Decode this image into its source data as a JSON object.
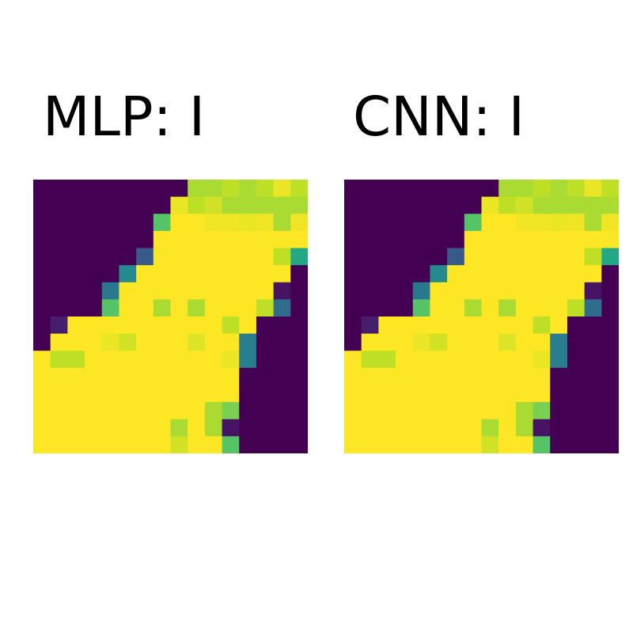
{
  "chart_data": [
    {
      "type": "heatmap",
      "title": "MLP: I",
      "colormap": "viridis",
      "value_range": [
        0,
        1
      ],
      "rows": 16,
      "cols": 16,
      "values": [
        [
          0,
          0,
          0,
          0,
          0,
          0,
          0,
          0,
          0,
          0.87,
          0.87,
          0.9,
          0.87,
          0.9,
          0.97,
          0.9
        ],
        [
          0,
          0,
          0,
          0,
          0,
          0,
          0,
          0,
          0.97,
          0.9,
          0.93,
          0.87,
          0.87,
          0.87,
          0.87,
          0.87
        ],
        [
          0,
          0,
          0,
          0,
          0,
          0,
          0,
          0.73,
          1,
          1,
          0.98,
          0.98,
          0.97,
          0.98,
          0.87,
          0.98
        ],
        [
          0,
          0,
          0,
          0,
          0,
          0,
          0,
          1,
          1,
          1,
          1,
          1,
          1,
          1,
          1,
          1
        ],
        [
          0,
          0,
          0,
          0,
          0,
          0,
          0.28,
          1,
          1,
          1,
          1,
          1,
          1,
          1,
          0.9,
          0.6
        ],
        [
          0,
          0,
          0,
          0,
          0,
          0.47,
          1,
          1,
          1,
          1,
          1,
          1,
          1,
          1,
          1,
          0
        ],
        [
          0,
          0,
          0,
          0,
          0.4,
          1,
          1,
          1,
          1,
          1,
          1,
          1,
          1,
          1,
          0.05,
          0
        ],
        [
          0,
          0,
          0,
          0,
          0.73,
          1,
          1,
          0.87,
          1,
          0.87,
          1,
          1,
          1,
          0.9,
          0.35,
          0
        ],
        [
          0,
          0.08,
          1,
          1,
          1,
          1,
          1,
          1,
          1,
          1,
          1,
          0.9,
          1,
          0,
          0,
          0
        ],
        [
          0,
          1,
          1,
          1,
          0.97,
          0.93,
          1,
          1,
          1,
          0.95,
          1,
          1,
          0.42,
          0,
          0,
          0
        ],
        [
          1,
          0.9,
          0.9,
          1,
          1,
          1,
          1,
          1,
          1,
          1,
          1,
          0.97,
          0.42,
          0,
          0,
          0
        ],
        [
          1,
          1,
          1,
          1,
          1,
          1,
          1,
          1,
          1,
          1,
          1,
          1,
          0,
          0,
          0,
          0
        ],
        [
          1,
          1,
          1,
          1,
          1,
          1,
          1,
          1,
          1,
          1,
          1,
          1,
          0,
          0,
          0,
          0
        ],
        [
          1,
          1,
          1,
          1,
          1,
          1,
          1,
          1,
          1,
          1,
          0.87,
          0.8,
          0,
          0,
          0,
          0
        ],
        [
          1,
          1,
          1,
          1,
          1,
          1,
          1,
          1,
          0.87,
          1,
          0.87,
          0.05,
          0,
          0,
          0,
          0
        ],
        [
          1,
          1,
          1,
          1,
          1,
          1,
          1,
          1,
          0.93,
          1,
          1,
          0.73,
          0,
          0,
          0,
          0
        ]
      ]
    },
    {
      "type": "heatmap",
      "title": "CNN: I",
      "colormap": "viridis",
      "value_range": [
        0,
        1
      ],
      "rows": 16,
      "cols": 16,
      "values": [
        [
          0,
          0,
          0,
          0,
          0,
          0,
          0,
          0,
          0,
          0.87,
          0.87,
          0.9,
          0.87,
          0.9,
          0.97,
          0.9
        ],
        [
          0,
          0,
          0,
          0,
          0,
          0,
          0,
          0,
          0.97,
          0.9,
          0.93,
          0.87,
          0.87,
          0.87,
          0.87,
          0.87
        ],
        [
          0,
          0,
          0,
          0,
          0,
          0,
          0,
          0.73,
          1,
          1,
          0.98,
          0.98,
          0.97,
          0.98,
          0.87,
          0.98
        ],
        [
          0,
          0,
          0,
          0,
          0,
          0,
          0,
          1,
          1,
          1,
          1,
          1,
          1,
          1,
          1,
          1
        ],
        [
          0,
          0,
          0,
          0,
          0,
          0,
          0.28,
          1,
          1,
          1,
          1,
          1,
          1,
          1,
          0.9,
          0.6
        ],
        [
          0,
          0,
          0,
          0,
          0,
          0.47,
          1,
          1,
          1,
          1,
          1,
          1,
          1,
          1,
          1,
          0
        ],
        [
          0,
          0,
          0,
          0,
          0.4,
          1,
          1,
          1,
          1,
          1,
          1,
          1,
          1,
          1,
          0.05,
          0
        ],
        [
          0,
          0,
          0,
          0,
          0.73,
          1,
          1,
          0.87,
          1,
          0.87,
          1,
          1,
          1,
          0.9,
          0.35,
          0
        ],
        [
          0,
          0.08,
          1,
          1,
          1,
          1,
          1,
          1,
          1,
          1,
          1,
          0.9,
          1,
          0,
          0,
          0
        ],
        [
          0,
          1,
          1,
          1,
          0.97,
          0.93,
          1,
          1,
          1,
          0.95,
          1,
          1,
          0.42,
          0,
          0,
          0
        ],
        [
          1,
          0.9,
          0.9,
          1,
          1,
          1,
          1,
          1,
          1,
          1,
          1,
          0.97,
          0.42,
          0,
          0,
          0
        ],
        [
          1,
          1,
          1,
          1,
          1,
          1,
          1,
          1,
          1,
          1,
          1,
          1,
          0,
          0,
          0,
          0
        ],
        [
          1,
          1,
          1,
          1,
          1,
          1,
          1,
          1,
          1,
          1,
          1,
          1,
          0,
          0,
          0,
          0
        ],
        [
          1,
          1,
          1,
          1,
          1,
          1,
          1,
          1,
          1,
          1,
          0.87,
          0.8,
          0,
          0,
          0,
          0
        ],
        [
          1,
          1,
          1,
          1,
          1,
          1,
          1,
          1,
          0.87,
          1,
          0.87,
          0.05,
          0,
          0,
          0,
          0
        ],
        [
          1,
          1,
          1,
          1,
          1,
          1,
          1,
          1,
          0.93,
          1,
          1,
          0.73,
          0,
          0,
          0,
          0
        ]
      ]
    }
  ]
}
